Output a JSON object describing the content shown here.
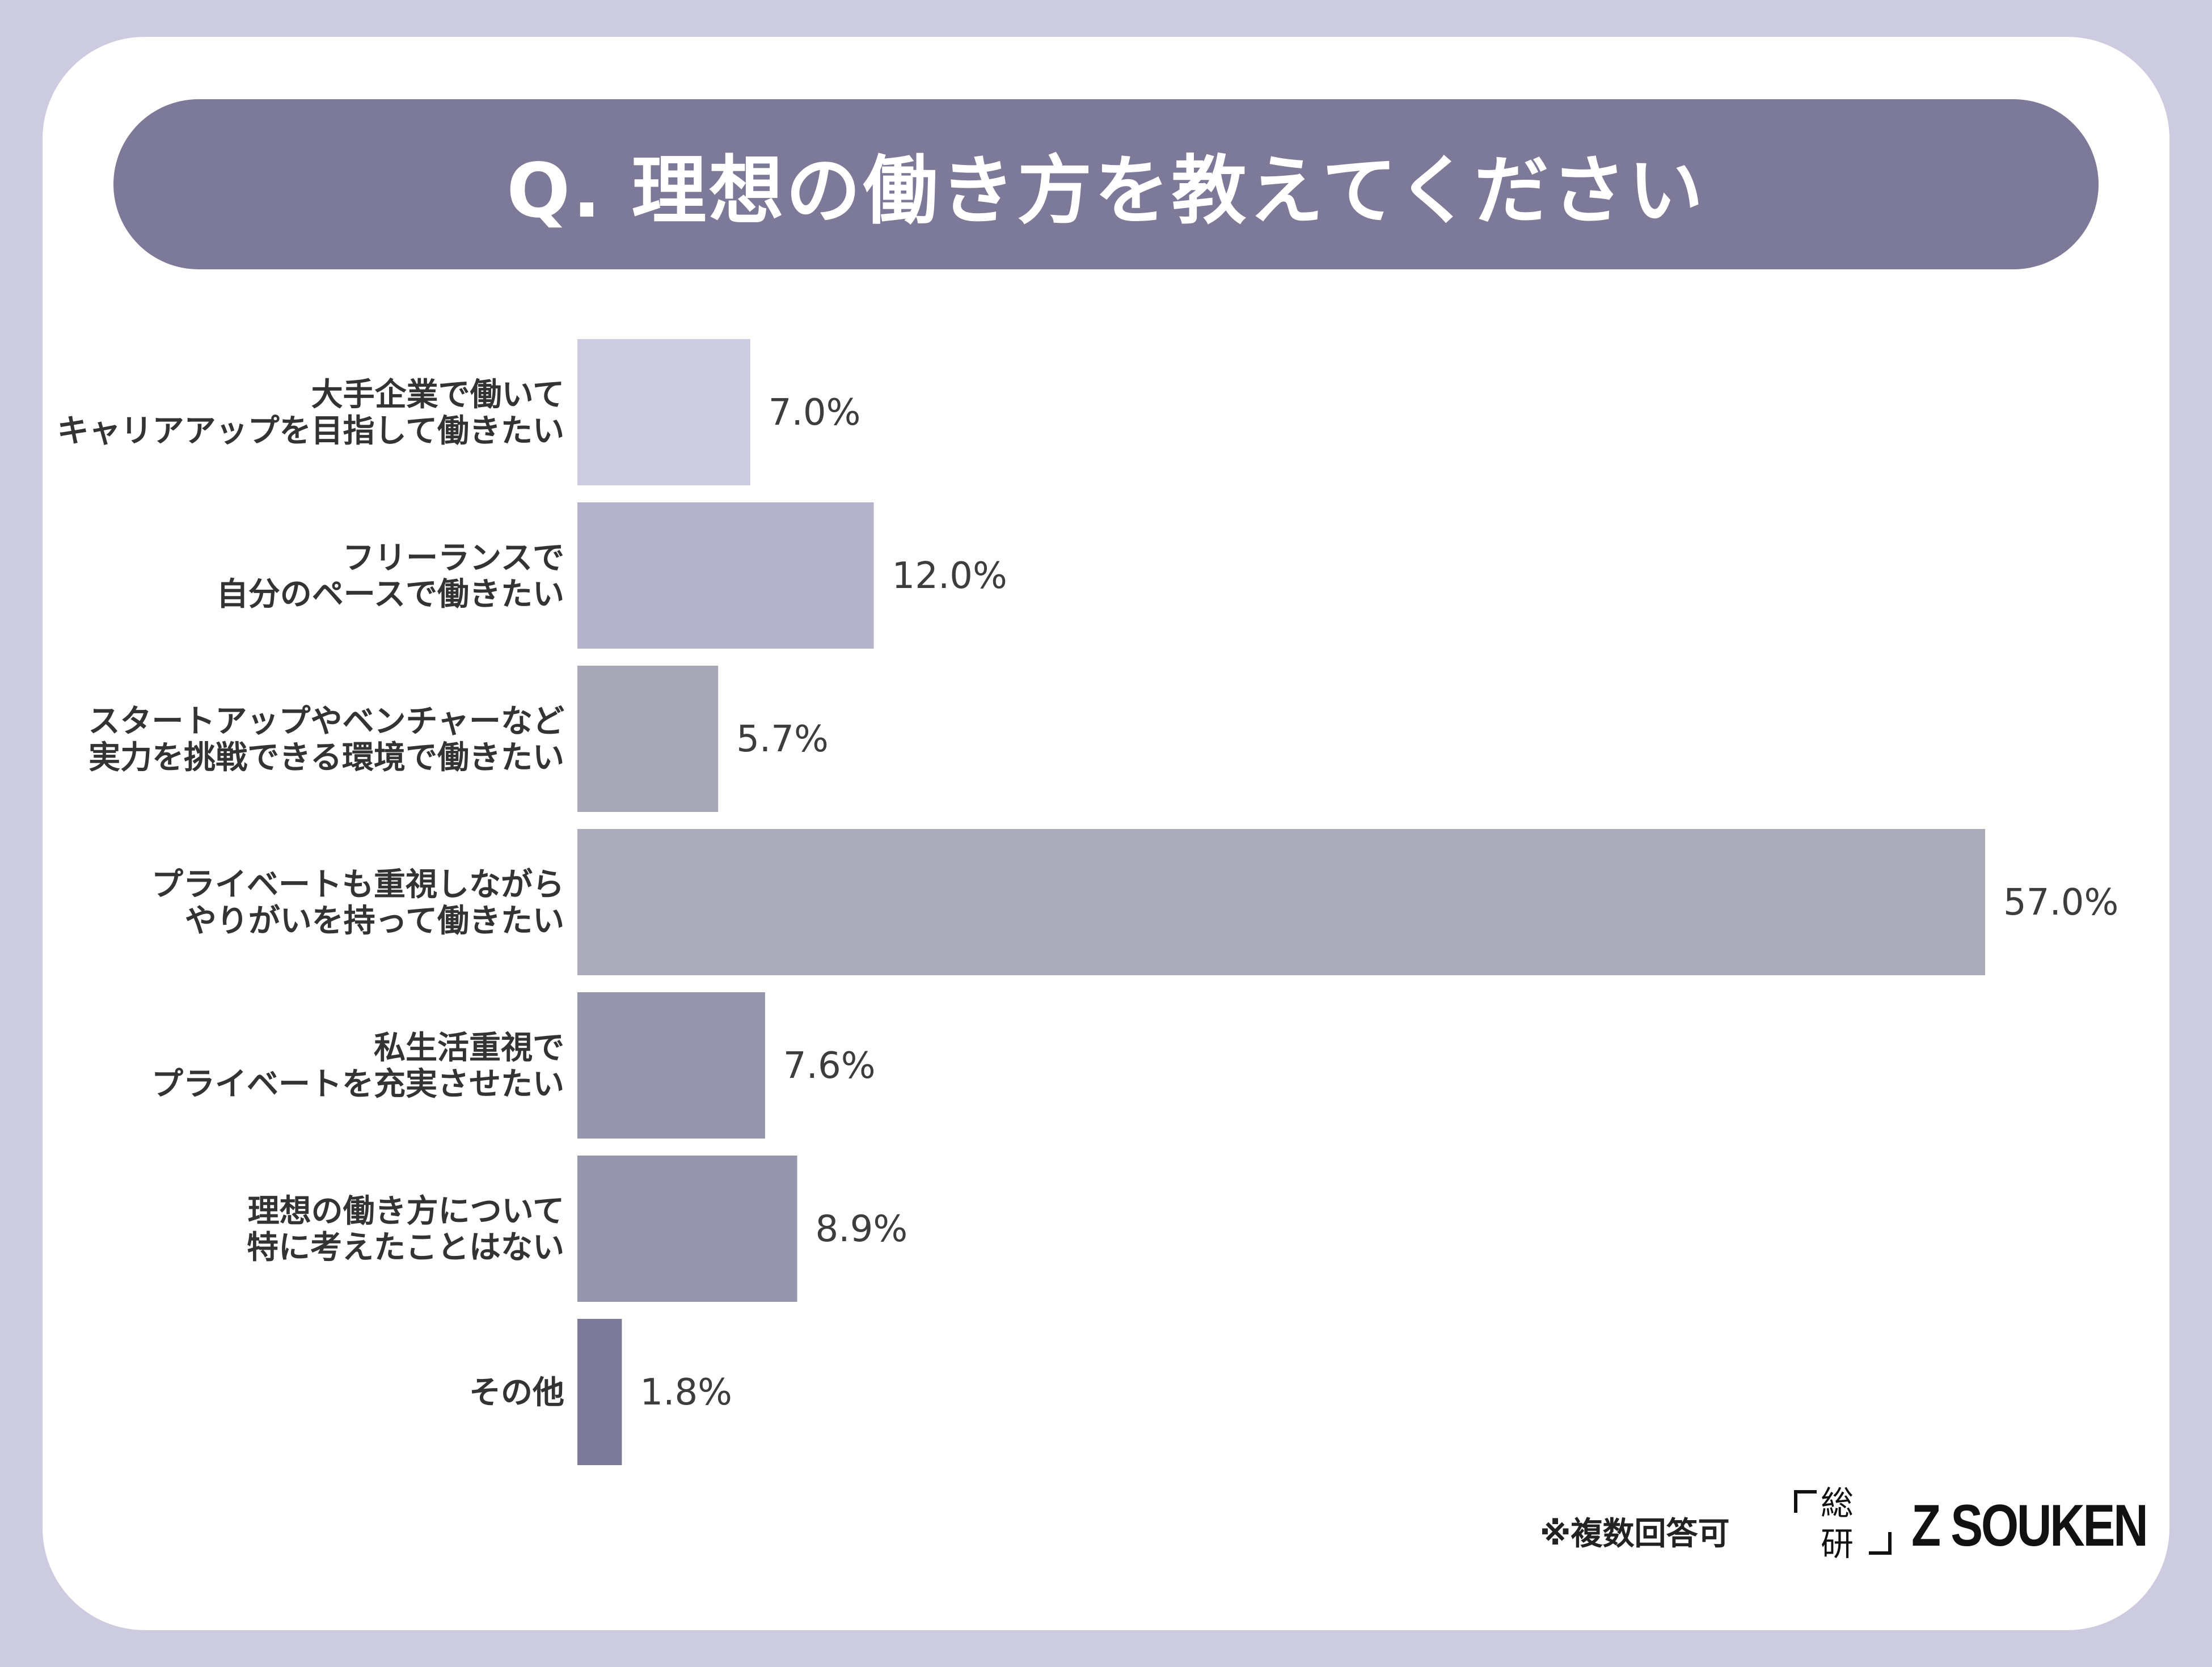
{
  "title": "Q. 理想の働き方を教えてください",
  "footnote": "※複数回答可",
  "logo": {
    "kanji_top": "総",
    "kanji_bottom": "研",
    "wordmark": "Z SOUKEN"
  },
  "chart_data": {
    "type": "bar",
    "orientation": "horizontal",
    "title": "Q. 理想の働き方を教えてください",
    "categories": [
      [
        "大手企業で働いて",
        "キャリアアップを目指して働きたい"
      ],
      [
        "フリーランスで",
        "自分のペースで働きたい"
      ],
      [
        "スタートアップやベンチャーなど",
        "実力を挑戦できる環境で働きたい"
      ],
      [
        "プライベートも重視しながら",
        "やりがいを持って働きたい"
      ],
      [
        "私生活重視で",
        "プライベートを充実させたい"
      ],
      [
        "理想の働き方について",
        "特に考えたことはない"
      ],
      [
        "その他"
      ]
    ],
    "values": [
      7.0,
      12.0,
      5.7,
      57.0,
      7.6,
      8.9,
      1.8
    ],
    "value_labels": [
      "7.0%",
      "12.0%",
      "5.7%",
      "57.0%",
      "7.6%",
      "8.9%",
      "1.8%"
    ],
    "bar_colors": [
      "#cdcbe0",
      "#b5b3cb",
      "#a9a8b9",
      "#acabb9",
      "#9595ab",
      "#9595ab",
      "#7d7998"
    ],
    "xlim": [
      0,
      57
    ],
    "grid": false,
    "legend": "none"
  }
}
